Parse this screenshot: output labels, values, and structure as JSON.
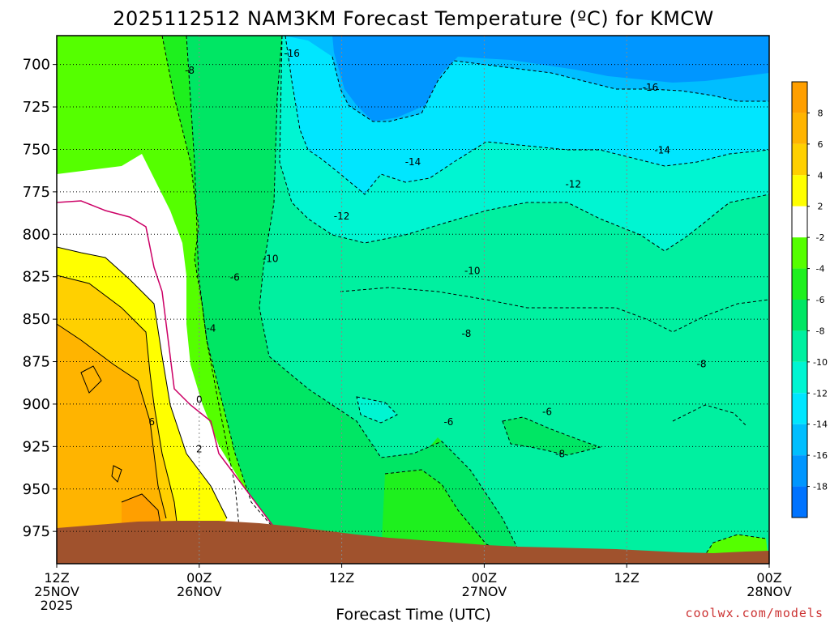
{
  "chart_data": {
    "type": "heatmap",
    "title": "2025112512 NAM3KM Forecast Temperature (ºC) for KMCW",
    "xlabel": "Forecast Time (UTC)",
    "ylabel": "",
    "x_ticks": [
      {
        "hour": 0,
        "l1": "12Z",
        "l2": "25NOV",
        "l3": "2025"
      },
      {
        "hour": 12,
        "l1": "00Z",
        "l2": "26NOV",
        "l3": ""
      },
      {
        "hour": 24,
        "l1": "12Z",
        "l2": "",
        "l3": ""
      },
      {
        "hour": 36,
        "l1": "00Z",
        "l2": "27NOV",
        "l3": ""
      },
      {
        "hour": 48,
        "l1": "12Z",
        "l2": "",
        "l3": ""
      },
      {
        "hour": 60,
        "l1": "00Z",
        "l2": "28NOV",
        "l3": ""
      }
    ],
    "xlim": [
      0,
      60
    ],
    "y_ticks": [
      700,
      725,
      750,
      775,
      800,
      825,
      850,
      875,
      900,
      925,
      950,
      975
    ],
    "ylim": [
      683,
      994
    ],
    "y_inverted": true,
    "colorbar": {
      "labels": [
        "8",
        "6",
        "4",
        "2",
        "-2",
        "-4",
        "-6",
        "-8",
        "-10",
        "-12",
        "-14",
        "-16",
        "-18"
      ],
      "bins": [
        {
          "lo": 8,
          "hi": 10,
          "color": "#ff9f00"
        },
        {
          "lo": 6,
          "hi": 8,
          "color": "#ffb400"
        },
        {
          "lo": 4,
          "hi": 6,
          "color": "#ffd000"
        },
        {
          "lo": 2,
          "hi": 4,
          "color": "#ffff00"
        },
        {
          "lo": -2,
          "hi": 2,
          "color": "#ffffff"
        },
        {
          "lo": -4,
          "hi": -2,
          "color": "#55ff00"
        },
        {
          "lo": -6,
          "hi": -4,
          "color": "#1ef01e"
        },
        {
          "lo": -8,
          "hi": -6,
          "color": "#00e664"
        },
        {
          "lo": -10,
          "hi": -8,
          "color": "#00f0a0"
        },
        {
          "lo": -12,
          "hi": -10,
          "color": "#00f5d2"
        },
        {
          "lo": -14,
          "hi": -12,
          "color": "#00e6ff"
        },
        {
          "lo": -16,
          "hi": -14,
          "color": "#00beff"
        },
        {
          "lo": -18,
          "hi": -16,
          "color": "#0096ff"
        },
        {
          "lo": -20,
          "hi": -18,
          "color": "#0073ff"
        }
      ]
    },
    "ground_color": "#a0522d",
    "contour_labels": [
      {
        "text": "-16",
        "hour": 19.8,
        "p": 693
      },
      {
        "text": "-16",
        "hour": 50.0,
        "p": 713
      },
      {
        "text": "-8",
        "hour": 11.2,
        "p": 703
      },
      {
        "text": "-14",
        "hour": 30.0,
        "p": 757
      },
      {
        "text": "-14",
        "hour": 51.0,
        "p": 750
      },
      {
        "text": "-12",
        "hour": 43.5,
        "p": 770
      },
      {
        "text": "-12",
        "hour": 24.0,
        "p": 789
      },
      {
        "text": "-10",
        "hour": 18.0,
        "p": 814
      },
      {
        "text": "-10",
        "hour": 35.0,
        "p": 821
      },
      {
        "text": "-6",
        "hour": 15.0,
        "p": 825
      },
      {
        "text": "-4",
        "hour": 13.0,
        "p": 855
      },
      {
        "text": "-8",
        "hour": 34.5,
        "p": 858
      },
      {
        "text": "-8",
        "hour": 54.3,
        "p": 876
      },
      {
        "text": "-6",
        "hour": 33.0,
        "p": 910
      },
      {
        "text": "-6",
        "hour": 41.3,
        "p": 904
      },
      {
        "text": "-8",
        "hour": 42.4,
        "p": 929
      },
      {
        "text": "0",
        "hour": 12.0,
        "p": 897
      },
      {
        "text": "2",
        "hour": 12.0,
        "p": 926
      },
      {
        "text": "6",
        "hour": 8.0,
        "p": 910
      }
    ]
  },
  "credit": "coolwx.com/models"
}
